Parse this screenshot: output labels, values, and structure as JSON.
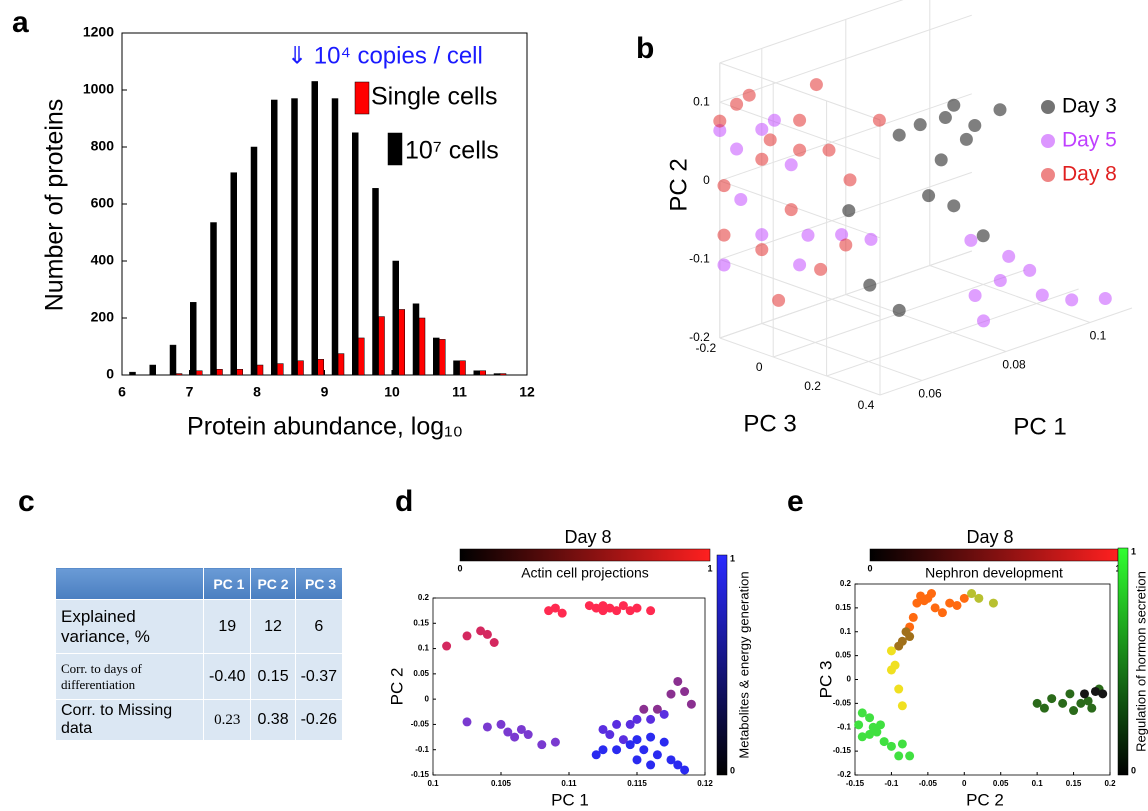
{
  "panel_labels": [
    "a",
    "b",
    "c",
    "d",
    "e"
  ],
  "chart_data": [
    {
      "type": "bar",
      "annotation": "⇓ 10⁴ copies / cell",
      "x_label": "Protein abundance, log₁₀",
      "y_label": "Number of proteins",
      "x": [
        6.2,
        6.5,
        6.8,
        7.1,
        7.4,
        7.7,
        8.0,
        8.3,
        8.6,
        8.9,
        9.2,
        9.5,
        9.8,
        10.1,
        10.4,
        10.7,
        11.0,
        11.3,
        11.6
      ],
      "series": [
        {
          "name": "Single cells",
          "color": "#ff0000",
          "values": [
            0,
            0,
            5,
            15,
            20,
            20,
            35,
            40,
            50,
            55,
            75,
            130,
            205,
            230,
            200,
            125,
            50,
            15,
            5
          ]
        },
        {
          "name": "10⁷ cells",
          "color": "#000000",
          "values": [
            10,
            35,
            105,
            255,
            535,
            710,
            800,
            965,
            970,
            1030,
            970,
            850,
            655,
            400,
            250,
            130,
            50,
            15,
            5
          ]
        }
      ],
      "xlim": [
        6,
        12
      ],
      "ylim": [
        0,
        1200
      ],
      "xticks": [
        6,
        7,
        8,
        9,
        10,
        11,
        12
      ],
      "yticks": [
        0,
        200,
        400,
        600,
        800,
        1000,
        1200
      ]
    },
    {
      "type": "scatter3d",
      "x_label": "PC 1",
      "y_label": "PC 2",
      "z_label": "PC 3",
      "series": [
        {
          "name": "Day 3",
          "color": "#000000",
          "x": [
            0.085,
            0.091,
            0.098,
            0.093,
            0.104,
            0.08,
            0.087,
            0.093,
            0.1,
            0.068,
            0.073,
            0.08,
            0.096,
            0.09
          ],
          "values": [
            0.031,
            0.029,
            0.006,
            0.041,
            0.015,
            0.027,
            -0.063,
            -0.087,
            -0.138,
            -0.047,
            -0.151,
            -0.196,
            -0.008,
            -0.023
          ],
          "z": [
            0,
            0,
            0,
            0,
            0,
            0,
            0,
            0,
            0,
            0,
            0,
            0,
            0,
            0
          ]
        },
        {
          "name": "Day 5",
          "color": "#bf3fff",
          "x": [
            0.05,
            0.054,
            0.06,
            0.067,
            0.055,
            0.06,
            0.069,
            0.079,
            0.086,
            0.051,
            0.063,
            0.071,
            0.078,
            0.085,
            0.092,
            0.102,
            0.11,
            0.081,
            0.079,
            0.095,
            0.087
          ],
          "values": [
            0.064,
            0.033,
            0.047,
            -0.011,
            -0.033,
            -0.087,
            -0.142,
            -0.122,
            -0.141,
            -0.109,
            0.053,
            -0.108,
            -0.067,
            -0.131,
            -0.131,
            -0.187,
            -0.2,
            -0.175,
            -0.139,
            -0.168,
            -0.104
          ],
          "z": [
            -0.2,
            -0.2,
            -0.2,
            -0.2,
            -0.2,
            -0.2,
            -0.2,
            -0.2,
            -0.2,
            -0.2,
            -0.2,
            -0.2,
            0.3,
            0.3,
            0.3,
            0.3,
            0.3,
            0.3,
            0.3,
            0.3,
            0.3
          ]
        },
        {
          "name": "Day 8",
          "color": "#e02020",
          "x": [
            0.05,
            0.054,
            0.057,
            0.062,
            0.069,
            0.076,
            0.081,
            0.088,
            0.067,
            0.06,
            0.051,
            0.064,
            0.074,
            0.08,
            0.073,
            0.051,
            0.069,
            0.06
          ],
          "values": [
            0.076,
            0.09,
            0.096,
            0.03,
            0.004,
            -0.009,
            -0.056,
            0.007,
            -0.068,
            -0.106,
            -0.071,
            -0.178,
            -0.157,
            -0.137,
            0.08,
            -0.008,
            0.042,
            0.009
          ],
          "z": [
            -0.2,
            -0.2,
            -0.2,
            -0.2,
            -0.2,
            -0.2,
            -0.2,
            -0.2,
            -0.2,
            -0.2,
            -0.2,
            -0.2,
            -0.2,
            -0.2,
            -0.2,
            -0.2,
            -0.2,
            -0.2
          ]
        }
      ],
      "xlim": [
        0.05,
        0.11
      ],
      "ylim": [
        -0.2,
        0.15
      ],
      "zlim": [
        -0.2,
        0.4
      ],
      "xticks": [
        0.06,
        0.08,
        0.1
      ],
      "yticks": [
        -0.2,
        -0.1,
        0,
        0.1
      ],
      "zticks": [
        -0.2,
        0,
        0.2,
        0.4
      ],
      "grid": true
    },
    {
      "type": "scatter",
      "title": "Day 8",
      "x_label": "PC 1",
      "y_label": "PC 2",
      "colorbar_top": {
        "label": "Actin cell projections",
        "ticks": [
          0,
          1
        ],
        "colors": [
          "#000000",
          "#ff2020"
        ]
      },
      "colorbar_right": {
        "label": "Metabolites & energy generation",
        "ticks": [
          0,
          1
        ],
        "colors": [
          "#2a2aff",
          "#000000"
        ]
      },
      "series": [
        {
          "color": "#d4285f",
          "x": [
            0.101,
            0.1025,
            0.1035,
            0.104,
            0.1045
          ],
          "values": [
            0.105,
            0.125,
            0.135,
            0.128,
            0.112
          ]
        },
        {
          "color": "#ff2a50",
          "x": [
            0.1085,
            0.109,
            0.1095,
            0.1115,
            0.112,
            0.1125,
            0.1125,
            0.113,
            0.1135,
            0.114,
            0.1145,
            0.115,
            0.116
          ],
          "values": [
            0.175,
            0.18,
            0.17,
            0.185,
            0.18,
            0.175,
            0.185,
            0.18,
            0.175,
            0.185,
            0.175,
            0.18,
            0.175
          ]
        },
        {
          "color": "#7a3ad0",
          "x": [
            0.1025,
            0.104,
            0.105,
            0.1055,
            0.106,
            0.1065,
            0.107,
            0.108,
            0.109
          ],
          "values": [
            -0.045,
            -0.055,
            -0.05,
            -0.065,
            -0.075,
            -0.06,
            -0.07,
            -0.09,
            -0.085
          ]
        },
        {
          "color": "#8a3090",
          "x": [
            0.118,
            0.1185,
            0.119,
            0.1175,
            0.1165,
            0.1155
          ],
          "values": [
            0.035,
            0.015,
            -0.01,
            0.01,
            -0.02,
            -0.02
          ]
        },
        {
          "color": "#5a2ee0",
          "x": [
            0.117,
            0.116,
            0.115,
            0.1145,
            0.1135,
            0.1125,
            0.113,
            0.114
          ],
          "values": [
            -0.03,
            -0.04,
            -0.04,
            -0.05,
            -0.05,
            -0.06,
            -0.07,
            -0.08
          ]
        },
        {
          "color": "#2a2af0",
          "x": [
            0.115,
            0.116,
            0.117,
            0.1145,
            0.1135,
            0.1155,
            0.1165,
            0.1175,
            0.118,
            0.1185,
            0.1125,
            0.112,
            0.115,
            0.116
          ],
          "values": [
            -0.08,
            -0.075,
            -0.085,
            -0.09,
            -0.1,
            -0.1,
            -0.11,
            -0.12,
            -0.13,
            -0.14,
            -0.1,
            -0.11,
            -0.12,
            -0.13
          ]
        }
      ],
      "xlim": [
        0.1,
        0.12
      ],
      "ylim": [
        -0.15,
        0.2
      ],
      "xticks": [
        0.1,
        0.105,
        0.11,
        0.115,
        0.12
      ],
      "yticks": [
        -0.15,
        -0.1,
        -0.05,
        0,
        0.05,
        0.1,
        0.15,
        0.2
      ]
    },
    {
      "type": "scatter",
      "title": "Day 8",
      "x_label": "PC 2",
      "y_label": "PC 3",
      "colorbar_top": {
        "label": "Nephron development",
        "ticks": [
          0,
          1
        ],
        "colors": [
          "#000000",
          "#ff2020"
        ]
      },
      "colorbar_right": {
        "label": "Regulation of hormon secretion",
        "ticks": [
          0,
          1
        ],
        "colors": [
          "#30ff30",
          "#000000"
        ]
      },
      "series": [
        {
          "color": "#ff6a10",
          "x": [
            -0.065,
            -0.06,
            -0.055,
            -0.05,
            -0.045,
            -0.04,
            -0.03,
            -0.02,
            -0.01,
            0,
            -0.07,
            -0.075
          ],
          "values": [
            0.16,
            0.175,
            0.165,
            0.17,
            0.18,
            0.15,
            0.14,
            0.16,
            0.155,
            0.17,
            0.13,
            0.11
          ]
        },
        {
          "color": "#a0701a",
          "x": [
            -0.08,
            -0.085,
            -0.09,
            -0.075
          ],
          "values": [
            0.1,
            0.08,
            0.07,
            0.09
          ]
        },
        {
          "color": "#f0e020",
          "x": [
            -0.1,
            -0.095,
            -0.1,
            -0.09,
            -0.085
          ],
          "values": [
            0.06,
            0.03,
            0.02,
            -0.02,
            -0.055
          ]
        },
        {
          "color": "#b8c030",
          "x": [
            0.01,
            0.02,
            0.04
          ],
          "values": [
            0.18,
            0.17,
            0.16
          ]
        },
        {
          "color": "#40e040",
          "x": [
            -0.14,
            -0.13,
            -0.125,
            -0.12,
            -0.13,
            -0.14,
            -0.11,
            -0.1,
            -0.085,
            -0.075,
            -0.09,
            -0.115,
            -0.145
          ],
          "values": [
            -0.07,
            -0.08,
            -0.1,
            -0.11,
            -0.115,
            -0.12,
            -0.13,
            -0.14,
            -0.135,
            -0.16,
            -0.16,
            -0.095,
            -0.095
          ]
        },
        {
          "color": "#2a6a1a",
          "x": [
            0.1,
            0.11,
            0.12,
            0.135,
            0.145,
            0.16,
            0.17,
            0.175,
            0.15,
            0.185
          ],
          "values": [
            -0.05,
            -0.06,
            -0.04,
            -0.05,
            -0.03,
            -0.05,
            -0.045,
            -0.06,
            -0.065,
            -0.02
          ]
        },
        {
          "color": "#151515",
          "x": [
            0.165,
            0.18,
            0.19
          ],
          "values": [
            -0.03,
            -0.025,
            -0.03
          ]
        }
      ],
      "xlim": [
        -0.15,
        0.2
      ],
      "ylim": [
        -0.2,
        0.2
      ],
      "xticks": [
        -0.15,
        -0.1,
        -0.05,
        0,
        0.05,
        0.1,
        0.15,
        0.2
      ],
      "yticks": [
        -0.2,
        -0.15,
        -0.1,
        -0.05,
        0,
        0.05,
        0.1,
        0.15,
        0.2
      ]
    }
  ],
  "table": {
    "columns": [
      "PC 1",
      "PC 2",
      "PC 3"
    ],
    "rows": [
      {
        "label": "Explained variance, %",
        "values": [
          "19",
          "12",
          "6"
        ]
      },
      {
        "label": "Corr. to days of differentiation",
        "values": [
          "-0.40",
          "0.15",
          "-0.37"
        ]
      },
      {
        "label": "Corr. to Missing data",
        "values": [
          "0.23",
          "0.38",
          "-0.26"
        ]
      }
    ]
  }
}
